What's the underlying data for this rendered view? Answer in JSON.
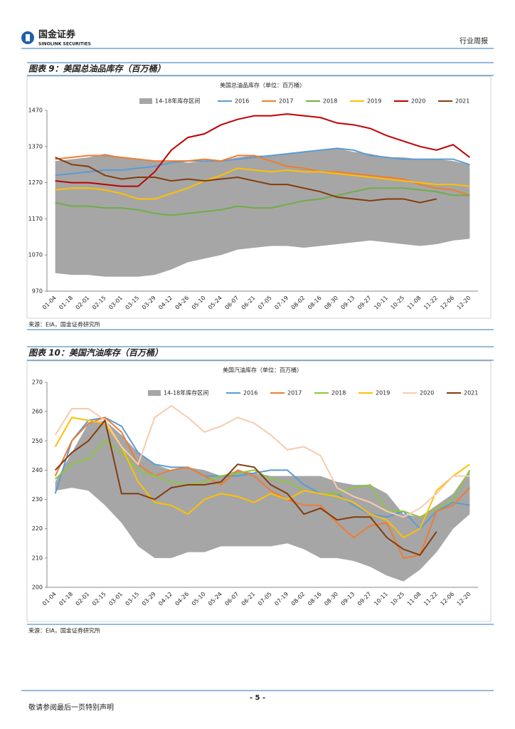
{
  "header": {
    "company": "国金证券",
    "company_en": "SINOLINK SECURITIES",
    "report_type": "行业周报"
  },
  "figures": [
    {
      "caption": "图表 9：美国总油品库存（百万桶）",
      "source": "来源：EIA，国金证券研究所"
    },
    {
      "caption": "图表 10：美国汽油库存（百万桶）",
      "source": "来源：EIA，国金证券研究所"
    }
  ],
  "chart_data": [
    {
      "type": "line",
      "title": "美国总油品库存（单位：百万桶）",
      "categories": [
        "01-04",
        "01-18",
        "02-01",
        "02-15",
        "03-01",
        "03-15",
        "03-29",
        "04-12",
        "04-26",
        "05-10",
        "05-24",
        "06-07",
        "06-21",
        "07-05",
        "07-19",
        "08-02",
        "08-16",
        "08-30",
        "09-13",
        "09-27",
        "10-11",
        "10-25",
        "11-08",
        "11-22",
        "12-06",
        "12-20"
      ],
      "ylim": [
        970,
        1470
      ],
      "yticks": [
        970,
        1070,
        1170,
        1270,
        1370,
        1470
      ],
      "series": [
        {
          "name": "14-18年库存区间",
          "color": "#a6a6a6",
          "low": [
            1020,
            1015,
            1015,
            1010,
            1010,
            1010,
            1015,
            1030,
            1050,
            1060,
            1070,
            1085,
            1090,
            1095,
            1095,
            1090,
            1095,
            1100,
            1105,
            1110,
            1105,
            1100,
            1095,
            1100,
            1110,
            1115
          ],
          "high": [
            1330,
            1335,
            1340,
            1350,
            1340,
            1335,
            1330,
            1330,
            1325,
            1330,
            1330,
            1340,
            1345,
            1345,
            1350,
            1355,
            1360,
            1365,
            1355,
            1350,
            1340,
            1340,
            1335,
            1335,
            1330,
            1320
          ]
        },
        {
          "name": "2016",
          "color": "#5b9bd5",
          "values": [
            1290,
            1295,
            1300,
            1305,
            1305,
            1310,
            1315,
            1325,
            1330,
            1330,
            1330,
            1335,
            1340,
            1345,
            1350,
            1355,
            1360,
            1365,
            1360,
            1345,
            1340,
            1335,
            1335,
            1335,
            1335,
            1320
          ]
        },
        {
          "name": "2017",
          "color": "#ed7d31",
          "values": [
            1335,
            1340,
            1345,
            1345,
            1340,
            1335,
            1330,
            1330,
            1330,
            1335,
            1330,
            1345,
            1345,
            1330,
            1315,
            1310,
            1300,
            1300,
            1295,
            1290,
            1285,
            1280,
            1265,
            1255,
            1250,
            1235
          ]
        },
        {
          "name": "2018",
          "color": "#70ad47",
          "values": [
            1215,
            1205,
            1205,
            1200,
            1200,
            1195,
            1185,
            1180,
            1185,
            1190,
            1195,
            1205,
            1200,
            1200,
            1210,
            1220,
            1225,
            1235,
            1245,
            1255,
            1255,
            1255,
            1250,
            1245,
            1235,
            1235
          ]
        },
        {
          "name": "2019",
          "color": "#ffc000",
          "values": [
            1250,
            1255,
            1255,
            1250,
            1240,
            1225,
            1225,
            1240,
            1255,
            1275,
            1290,
            1310,
            1305,
            1300,
            1305,
            1300,
            1300,
            1295,
            1290,
            1285,
            1280,
            1275,
            1270,
            1265,
            1265,
            1260
          ]
        },
        {
          "name": "2020",
          "color": "#c00000",
          "values": [
            1275,
            1270,
            1270,
            1265,
            1260,
            1260,
            1300,
            1360,
            1395,
            1405,
            1430,
            1445,
            1455,
            1455,
            1460,
            1455,
            1450,
            1435,
            1430,
            1420,
            1400,
            1385,
            1370,
            1360,
            1375,
            1340
          ]
        },
        {
          "name": "2021",
          "color": "#843c0c",
          "values": [
            1340,
            1320,
            1315,
            1290,
            1280,
            1285,
            1285,
            1275,
            1280,
            1275,
            1280,
            1285,
            1275,
            1265,
            1265,
            1255,
            1245,
            1230,
            1225,
            1220,
            1225,
            1225,
            1215,
            1225,
            null,
            null
          ]
        }
      ]
    },
    {
      "type": "line",
      "title": "美国汽油库存（单位：百万桶）",
      "categories": [
        "01-04",
        "01-18",
        "02-01",
        "02-15",
        "03-01",
        "03-15",
        "03-29",
        "04-12",
        "04-26",
        "05-10",
        "05-24",
        "06-07",
        "06-21",
        "07-05",
        "07-19",
        "08-02",
        "08-16",
        "08-30",
        "09-13",
        "09-27",
        "10-11",
        "10-25",
        "11-08",
        "11-22",
        "12-06",
        "12-20"
      ],
      "ylim": [
        200,
        270
      ],
      "yticks": [
        200,
        210,
        220,
        230,
        240,
        250,
        260,
        270
      ],
      "series": [
        {
          "name": "14-18年库存区间",
          "color": "#a6a6a6",
          "low": [
            233,
            234,
            233,
            228,
            222,
            214,
            210,
            210,
            212,
            212,
            214,
            214,
            214,
            214,
            215,
            213,
            210,
            210,
            209,
            207,
            204,
            202,
            206,
            212,
            220,
            225
          ],
          "high": [
            236,
            246,
            256,
            257,
            252,
            246,
            242,
            240,
            241,
            240,
            238,
            240,
            239,
            238,
            238,
            238,
            238,
            236,
            235,
            235,
            232,
            225,
            224,
            228,
            232,
            240
          ]
        },
        {
          "name": "2016",
          "color": "#5b9bd5",
          "values": [
            232,
            250,
            257,
            258,
            255,
            246,
            242,
            241,
            241,
            238,
            238,
            238,
            239,
            240,
            240,
            235,
            232,
            232,
            228,
            225,
            224,
            226,
            220,
            226,
            229,
            228
          ]
        },
        {
          "name": "2017",
          "color": "#ed7d31",
          "values": [
            238,
            250,
            256,
            258,
            253,
            242,
            238,
            240,
            241,
            238,
            235,
            240,
            238,
            233,
            230,
            228,
            228,
            222,
            217,
            221,
            222,
            210,
            211,
            226,
            228,
            234
          ]
        },
        {
          "name": "2018",
          "color": "#8dc63f",
          "values": [
            237,
            242,
            244,
            250,
            246,
            240,
            238,
            236,
            235,
            236,
            238,
            239,
            240,
            237,
            236,
            233,
            232,
            232,
            234,
            235,
            226,
            226,
            224,
            227,
            230,
            240
          ]
        },
        {
          "name": "2019",
          "color": "#ffc000",
          "values": [
            248,
            258,
            257,
            256,
            248,
            236,
            229,
            228,
            225,
            230,
            232,
            231,
            229,
            232,
            230,
            233,
            232,
            231,
            229,
            225,
            223,
            217,
            220,
            233,
            238,
            242
          ]
        },
        {
          "name": "2020",
          "color": "#f8cbad",
          "values": [
            252,
            261,
            261,
            257,
            248,
            242,
            258,
            262,
            258,
            253,
            255,
            258,
            256,
            252,
            247,
            248,
            245,
            234,
            231,
            229,
            226,
            224,
            227,
            232,
            238,
            238
          ]
        },
        {
          "name": "2021",
          "color": "#843c0c",
          "values": [
            240,
            246,
            250,
            257,
            232,
            232,
            230,
            234,
            235,
            235,
            236,
            242,
            241,
            235,
            232,
            225,
            227,
            223,
            224,
            224,
            217,
            213,
            211,
            219,
            null,
            null
          ]
        }
      ]
    }
  ],
  "footer": {
    "page": "- 5 -",
    "disclaimer": "敬请参阅最后一页特别声明"
  }
}
